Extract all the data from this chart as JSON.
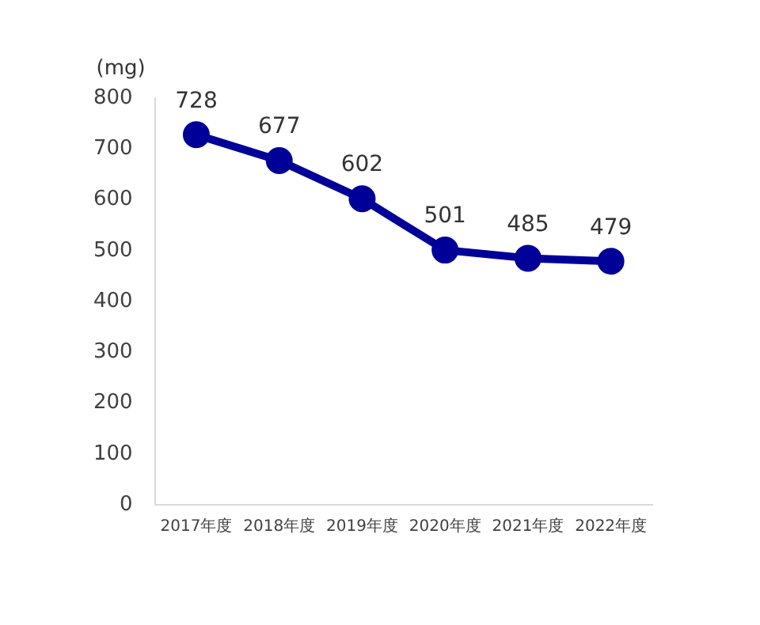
{
  "chart_data": {
    "type": "line",
    "ylabel": "(mg)",
    "categories": [
      "2017年度",
      "2018年度",
      "2019年度",
      "2020年度",
      "2021年度",
      "2022年度"
    ],
    "series": [
      {
        "color": "#000099",
        "values": [
          728,
          677,
          602,
          501,
          485,
          479
        ]
      }
    ],
    "ylim": [
      0,
      800
    ],
    "yticks": [
      0,
      100,
      200,
      300,
      400,
      500,
      600,
      700,
      800
    ],
    "grid": false,
    "legend": false,
    "marker": "circle",
    "line_style": "solid",
    "data_labels": true
  }
}
